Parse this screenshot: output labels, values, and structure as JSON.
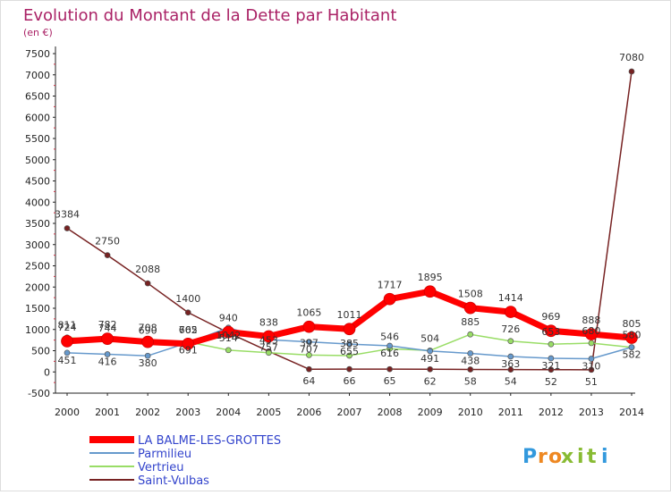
{
  "chart_data": {
    "type": "line",
    "title": "Evolution du Montant de la Dette par Habitant",
    "subtitle": "(en €)",
    "x": [
      "2000",
      "2001",
      "2002",
      "2003",
      "2004",
      "2005",
      "2006",
      "2007",
      "2008",
      "2009",
      "2010",
      "2011",
      "2012",
      "2013",
      "2014"
    ],
    "y_ticks": [
      "-500",
      "0",
      "500",
      "1000",
      "1500",
      "2000",
      "2500",
      "3000",
      "3500",
      "4000",
      "4500",
      "5000",
      "5500",
      "6000",
      "6500",
      "7000",
      "7500"
    ],
    "ylim": [
      -500,
      7500
    ],
    "grid": false,
    "legend_position": "bottom-left",
    "series": [
      {
        "name": "LA BALME-LES-GROTTES",
        "color": "#ff0000",
        "values": [
          724,
          782,
          708,
          662,
          940,
          838,
          1065,
          1011,
          1717,
          1895,
          1508,
          1414,
          969,
          888,
          805
        ],
        "labels": [
          "724",
          "782",
          "708",
          "662",
          "940",
          "838",
          "1065",
          "1011",
          "1717",
          "1895",
          "1508",
          "1414",
          "969",
          "888",
          "805"
        ]
      },
      {
        "name": "Parmilieu",
        "color": "#6699cc",
        "values": [
          451,
          416,
          380,
          691,
          1042,
          757,
          707,
          655,
          616,
          491,
          438,
          363,
          321,
          310,
          582
        ],
        "labels": [
          "451",
          "416",
          "380",
          "691",
          "1042",
          "757",
          "707",
          "655",
          "616",
          "491",
          "438",
          "363",
          "321",
          "310",
          "582"
        ]
      },
      {
        "name": "Vertrieu",
        "color": "#99dd66",
        "values": [
          811,
          744,
          690,
          705,
          514,
          453,
          397,
          385,
          546,
          504,
          885,
          726,
          653,
          680,
          580
        ],
        "labels": [
          "811",
          "744",
          "690",
          "705",
          "514",
          "453",
          "397",
          "385",
          "546",
          "504",
          "885",
          "726",
          "653",
          "680",
          "580"
        ]
      },
      {
        "name": "Saint-Vulbas",
        "color": "#772222",
        "values": [
          3384,
          2750,
          2088,
          1400,
          922,
          485,
          64,
          66,
          65,
          62,
          58,
          54,
          52,
          51,
          7080
        ],
        "labels": [
          "3384",
          "2750",
          "2088",
          "1400",
          "",
          "",
          "64",
          "66",
          "65",
          "62",
          "58",
          "54",
          "52",
          "51",
          "7080"
        ]
      }
    ],
    "brand": "Proxiti"
  }
}
